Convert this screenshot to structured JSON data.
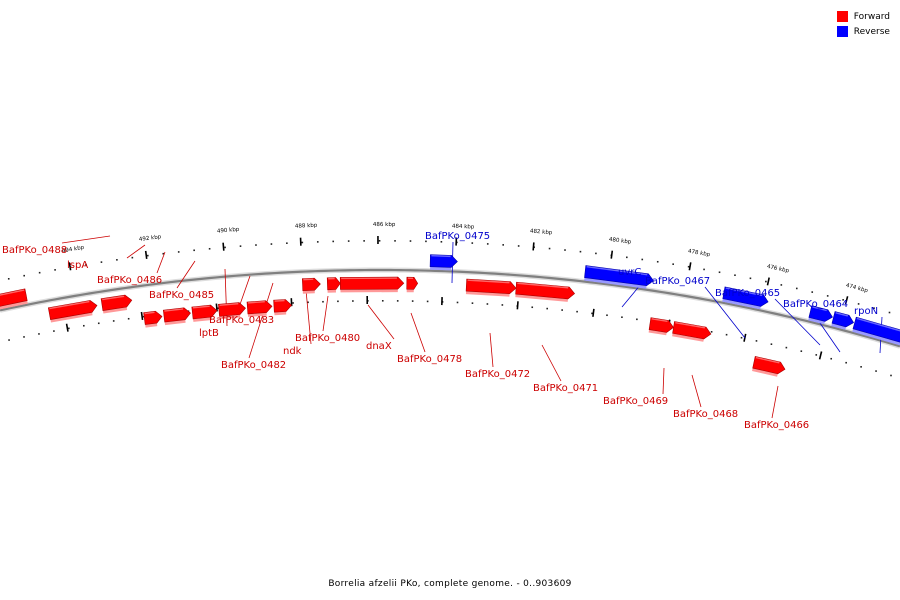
{
  "colors": {
    "forward": "#ff0000",
    "reverse": "#0000ff",
    "backbone": "#808080"
  },
  "legend": [
    {
      "label": "Forward",
      "color": "#ff0000"
    },
    {
      "label": "Reverse",
      "color": "#0000ff"
    }
  ],
  "caption": "Borrelia afzelii PKo, complete genome. - 0..903609",
  "ruler": {
    "unit": "kbp",
    "ticks": [
      "494 kbp",
      "492 kbp",
      "490 kbp",
      "488 kbp",
      "486 kbp",
      "484 kbp",
      "482 kbp",
      "480 kbp",
      "478 kbp",
      "476 kbp",
      "474 kbp"
    ]
  },
  "features": [
    {
      "label": "BafPKo_0488",
      "strand": "forward"
    },
    {
      "label": "lspA",
      "strand": "forward"
    },
    {
      "label": "BafPKo_0486",
      "strand": "forward"
    },
    {
      "label": "BafPKo_0485",
      "strand": "forward"
    },
    {
      "label": "lptB",
      "strand": "forward"
    },
    {
      "label": "BafPKo_0483",
      "strand": "forward"
    },
    {
      "label": "BafPKo_0482",
      "strand": "forward"
    },
    {
      "label": "ndk",
      "strand": "forward"
    },
    {
      "label": "BafPKo_0480",
      "strand": "forward"
    },
    {
      "label": "dnaX",
      "strand": "forward"
    },
    {
      "label": "BafPKo_0478",
      "strand": "forward"
    },
    {
      "label": "BafPKo_0475",
      "strand": "reverse"
    },
    {
      "label": "BafPKo_0472",
      "strand": "forward"
    },
    {
      "label": "BafPKo_0471",
      "strand": "forward"
    },
    {
      "label": "uvrC",
      "strand": "reverse"
    },
    {
      "label": "BafPKo_0467",
      "strand": "reverse"
    },
    {
      "label": "BafPKo_0465",
      "strand": "reverse"
    },
    {
      "label": "BafPKo_0469",
      "strand": "forward"
    },
    {
      "label": "BafPKo_0468",
      "strand": "forward"
    },
    {
      "label": "BafPKo_0466",
      "strand": "forward"
    },
    {
      "label": "BafPKo_0464",
      "strand": "reverse"
    },
    {
      "label": "rpoN",
      "strand": "reverse"
    }
  ]
}
